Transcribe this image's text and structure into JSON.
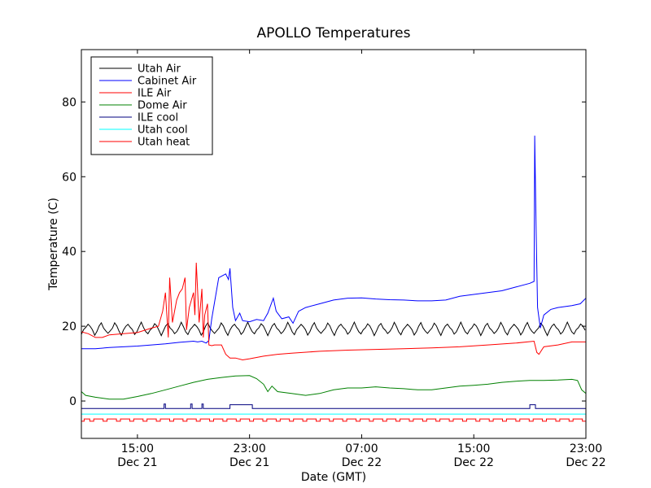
{
  "chart_data": {
    "type": "line",
    "title": "APOLLO Temperatures",
    "xlabel": "Date (GMT)",
    "ylabel": "Temperature (C)",
    "xlim": [
      11.0,
      47.0
    ],
    "ylim": [
      -10,
      94
    ],
    "y_ticks": [
      0,
      20,
      40,
      60,
      80
    ],
    "x_ticks": [
      {
        "hour": 15,
        "time": "15:00",
        "date": "Dec 21"
      },
      {
        "hour": 23,
        "time": "23:00",
        "date": "Dec 21"
      },
      {
        "hour": 31,
        "time": "07:00",
        "date": "Dec 22"
      },
      {
        "hour": 39,
        "time": "15:00",
        "date": "Dec 22"
      },
      {
        "hour": 47,
        "time": "23:00",
        "date": "Dec 22"
      }
    ],
    "legend_position": "top-left",
    "series": [
      {
        "name": "Utah Air",
        "color": "#000000",
        "kind": "sawtooth",
        "base": 19.3,
        "amp": 1.5,
        "period": 0.95,
        "points": []
      },
      {
        "name": "Cabinet Air",
        "color": "#0000ff",
        "kind": "line",
        "points": [
          [
            11.0,
            14.0
          ],
          [
            12.0,
            14.0
          ],
          [
            13.0,
            14.3
          ],
          [
            14.0,
            14.5
          ],
          [
            15.0,
            14.7
          ],
          [
            16.0,
            15.0
          ],
          [
            17.0,
            15.3
          ],
          [
            18.0,
            15.7
          ],
          [
            19.0,
            16.0
          ],
          [
            19.3,
            15.8
          ],
          [
            19.6,
            16.0
          ],
          [
            19.9,
            15.5
          ],
          [
            20.1,
            16.2
          ],
          [
            20.3,
            22.0
          ],
          [
            20.8,
            33.0
          ],
          [
            21.3,
            34.0
          ],
          [
            21.5,
            32.5
          ],
          [
            21.6,
            35.5
          ],
          [
            21.8,
            25.0
          ],
          [
            22.0,
            21.5
          ],
          [
            22.3,
            23.5
          ],
          [
            22.5,
            21.5
          ],
          [
            23.0,
            21.2
          ],
          [
            23.5,
            21.8
          ],
          [
            24.0,
            21.5
          ],
          [
            24.3,
            23.5
          ],
          [
            24.7,
            27.5
          ],
          [
            24.9,
            24.0
          ],
          [
            25.3,
            22.0
          ],
          [
            25.8,
            22.5
          ],
          [
            26.1,
            20.8
          ],
          [
            26.5,
            24.0
          ],
          [
            27.0,
            25.0
          ],
          [
            28.0,
            26.0
          ],
          [
            29.0,
            27.0
          ],
          [
            30.0,
            27.5
          ],
          [
            31.0,
            27.6
          ],
          [
            32.0,
            27.3
          ],
          [
            33.0,
            27.1
          ],
          [
            34.0,
            27.0
          ],
          [
            35.0,
            26.8
          ],
          [
            36.0,
            26.8
          ],
          [
            37.0,
            27.0
          ],
          [
            38.0,
            28.0
          ],
          [
            39.0,
            28.5
          ],
          [
            40.0,
            29.0
          ],
          [
            41.0,
            29.5
          ],
          [
            42.0,
            30.5
          ],
          [
            43.0,
            31.5
          ],
          [
            43.3,
            32.0
          ],
          [
            43.35,
            71.0
          ],
          [
            43.45,
            45.0
          ],
          [
            43.55,
            25.0
          ],
          [
            43.75,
            19.5
          ],
          [
            44.0,
            23.0
          ],
          [
            44.5,
            24.5
          ],
          [
            45.0,
            25.0
          ],
          [
            46.0,
            25.5
          ],
          [
            46.6,
            26.0
          ],
          [
            47.0,
            27.5
          ]
        ]
      },
      {
        "name": "ILE Air",
        "color": "#ff0000",
        "kind": "line",
        "points": [
          [
            11.0,
            18.5
          ],
          [
            11.5,
            18.0
          ],
          [
            12.0,
            17.0
          ],
          [
            12.5,
            17.0
          ],
          [
            13.0,
            17.7
          ],
          [
            14.0,
            18.0
          ],
          [
            15.0,
            18.3
          ],
          [
            16.0,
            19.5
          ],
          [
            16.5,
            20.0
          ],
          [
            16.8,
            24.0
          ],
          [
            17.0,
            29.0
          ],
          [
            17.2,
            17.0
          ],
          [
            17.3,
            33.0
          ],
          [
            17.5,
            21.0
          ],
          [
            17.8,
            27.0
          ],
          [
            18.0,
            29.0
          ],
          [
            18.2,
            30.0
          ],
          [
            18.4,
            33.0
          ],
          [
            18.5,
            19.0
          ],
          [
            18.7,
            25.0
          ],
          [
            19.0,
            29.0
          ],
          [
            19.1,
            23.0
          ],
          [
            19.2,
            37.0
          ],
          [
            19.4,
            21.0
          ],
          [
            19.6,
            30.0
          ],
          [
            19.7,
            17.0
          ],
          [
            19.8,
            23.0
          ],
          [
            20.0,
            26.0
          ],
          [
            20.1,
            15.0
          ],
          [
            20.3,
            14.8
          ],
          [
            20.5,
            15.0
          ],
          [
            21.0,
            15.0
          ],
          [
            21.3,
            12.5
          ],
          [
            21.6,
            11.5
          ],
          [
            22.0,
            11.5
          ],
          [
            22.5,
            11.0
          ],
          [
            23.0,
            11.3
          ],
          [
            24.0,
            12.0
          ],
          [
            25.0,
            12.5
          ],
          [
            26.0,
            12.8
          ],
          [
            28.0,
            13.3
          ],
          [
            30.0,
            13.6
          ],
          [
            32.0,
            13.8
          ],
          [
            34.0,
            14.0
          ],
          [
            36.0,
            14.2
          ],
          [
            38.0,
            14.5
          ],
          [
            40.0,
            15.0
          ],
          [
            42.0,
            15.5
          ],
          [
            43.3,
            16.0
          ],
          [
            43.5,
            13.0
          ],
          [
            43.65,
            12.5
          ],
          [
            44.0,
            14.5
          ],
          [
            45.0,
            15.0
          ],
          [
            46.0,
            15.8
          ],
          [
            47.0,
            15.8
          ]
        ]
      },
      {
        "name": "Dome Air",
        "color": "#008000",
        "kind": "line",
        "points": [
          [
            11.0,
            2.5
          ],
          [
            11.3,
            1.5
          ],
          [
            12.0,
            1.0
          ],
          [
            13.0,
            0.5
          ],
          [
            14.0,
            0.5
          ],
          [
            15.0,
            1.2
          ],
          [
            16.0,
            2.0
          ],
          [
            17.0,
            3.0
          ],
          [
            18.0,
            4.0
          ],
          [
            19.0,
            5.0
          ],
          [
            20.0,
            5.8
          ],
          [
            21.0,
            6.3
          ],
          [
            22.0,
            6.7
          ],
          [
            23.0,
            6.8
          ],
          [
            23.5,
            6.0
          ],
          [
            24.0,
            4.5
          ],
          [
            24.3,
            2.5
          ],
          [
            24.6,
            4.0
          ],
          [
            25.0,
            2.5
          ],
          [
            26.0,
            2.0
          ],
          [
            27.0,
            1.5
          ],
          [
            28.0,
            2.0
          ],
          [
            29.0,
            3.0
          ],
          [
            30.0,
            3.5
          ],
          [
            31.0,
            3.5
          ],
          [
            32.0,
            3.8
          ],
          [
            33.0,
            3.5
          ],
          [
            34.0,
            3.3
          ],
          [
            35.0,
            3.0
          ],
          [
            36.0,
            3.0
          ],
          [
            37.0,
            3.5
          ],
          [
            38.0,
            4.0
          ],
          [
            39.0,
            4.2
          ],
          [
            40.0,
            4.5
          ],
          [
            41.0,
            5.0
          ],
          [
            42.0,
            5.3
          ],
          [
            43.0,
            5.5
          ],
          [
            44.0,
            5.5
          ],
          [
            45.0,
            5.6
          ],
          [
            46.0,
            5.8
          ],
          [
            46.4,
            5.5
          ],
          [
            46.7,
            3.0
          ],
          [
            47.0,
            2.0
          ]
        ]
      },
      {
        "name": "ILE cool",
        "color": "#00007f",
        "kind": "line",
        "points": [
          [
            11.0,
            -2.0
          ],
          [
            16.9,
            -2.0
          ],
          [
            16.9,
            -0.8
          ],
          [
            17.0,
            -0.8
          ],
          [
            17.0,
            -2.0
          ],
          [
            18.8,
            -2.0
          ],
          [
            18.8,
            -0.8
          ],
          [
            18.9,
            -0.8
          ],
          [
            18.9,
            -2.0
          ],
          [
            19.6,
            -2.0
          ],
          [
            19.6,
            -0.8
          ],
          [
            19.7,
            -0.8
          ],
          [
            19.7,
            -2.0
          ],
          [
            21.6,
            -2.0
          ],
          [
            21.6,
            -1.0
          ],
          [
            23.2,
            -1.0
          ],
          [
            23.2,
            -2.0
          ],
          [
            43.0,
            -2.0
          ],
          [
            43.0,
            -1.0
          ],
          [
            43.4,
            -1.0
          ],
          [
            43.4,
            -2.0
          ],
          [
            47.0,
            -2.0
          ]
        ]
      },
      {
        "name": "Utah cool",
        "color": "#00ffff",
        "kind": "line",
        "points": [
          [
            11.0,
            -3.5
          ],
          [
            47.0,
            -3.5
          ]
        ]
      },
      {
        "name": "Utah heat",
        "color": "#ff0000",
        "kind": "square",
        "base": -4.8,
        "low": -5.4,
        "high": -4.4,
        "period": 0.95,
        "points": []
      }
    ]
  }
}
